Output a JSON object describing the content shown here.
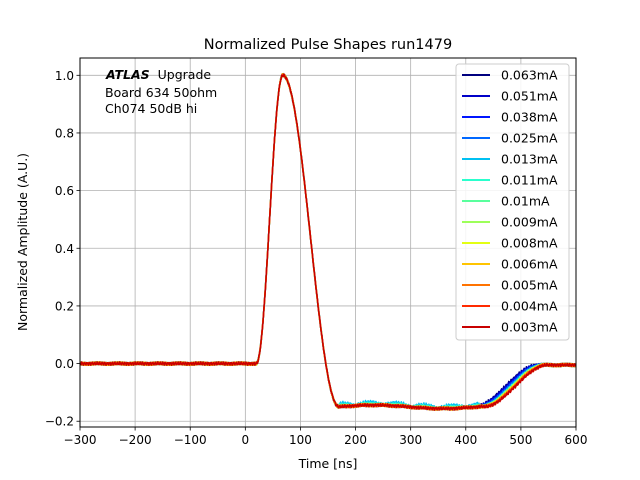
{
  "chart_data": {
    "type": "line",
    "title": "Normalized Pulse Shapes run1479",
    "xlabel": "Time [ns]",
    "ylabel": "Normalized Amplitude (A.U.)",
    "xlim": [
      -300,
      600
    ],
    "ylim": [
      -0.22,
      1.06
    ],
    "xticks": [
      -300,
      -200,
      -100,
      0,
      100,
      200,
      300,
      400,
      500,
      600
    ],
    "xtick_labels": [
      "−300",
      "−200",
      "−100",
      "0",
      "100",
      "200",
      "300",
      "400",
      "500",
      "600"
    ],
    "yticks": [
      -0.2,
      0.0,
      0.2,
      0.4,
      0.6,
      0.8,
      1.0
    ],
    "ytick_labels": [
      "−0.2",
      "0.0",
      "0.2",
      "0.4",
      "0.6",
      "0.8",
      "1.0"
    ],
    "grid": true,
    "legend_position": "top-right",
    "annotation": {
      "brand": "ATLAS",
      "brand_suffix": "Upgrade",
      "line2": "Board 634 50ohm",
      "line3": "Ch074 50dB hi"
    },
    "pulse_model": {
      "baseline": 0.0,
      "onset_ns": 20,
      "peak_ns": 68,
      "peak_value": 1.0,
      "fall_end_ns": 170,
      "undershoot_level": -0.15,
      "recovery_start_ns": 430,
      "recovery_end_ns": 545,
      "tail_value": -0.005
    },
    "series": [
      {
        "name": "0.063mA",
        "color": "#00007f",
        "recovery_shift_ns": -15,
        "ripple": 0.0
      },
      {
        "name": "0.051mA",
        "color": "#0000c8",
        "recovery_shift_ns": -13,
        "ripple": 0.0
      },
      {
        "name": "0.038mA",
        "color": "#0015ff",
        "recovery_shift_ns": -10,
        "ripple": 0.0
      },
      {
        "name": "0.025mA",
        "color": "#0068ff",
        "recovery_shift_ns": -8,
        "ripple": 0.004
      },
      {
        "name": "0.013mA",
        "color": "#00c0f2",
        "recovery_shift_ns": -5,
        "ripple": 0.012
      },
      {
        "name": "0.011mA",
        "color": "#2affcd",
        "recovery_shift_ns": -4,
        "ripple": 0.006
      },
      {
        "name": "0.01mA",
        "color": "#59ff9d",
        "recovery_shift_ns": -3,
        "ripple": 0.003
      },
      {
        "name": "0.009mA",
        "color": "#9dff59",
        "recovery_shift_ns": -2,
        "ripple": 0.002
      },
      {
        "name": "0.008mA",
        "color": "#e3ff13",
        "recovery_shift_ns": -1,
        "ripple": 0.0
      },
      {
        "name": "0.006mA",
        "color": "#ffc400",
        "recovery_shift_ns": 0,
        "ripple": 0.0
      },
      {
        "name": "0.005mA",
        "color": "#ff7300",
        "recovery_shift_ns": 1,
        "ripple": 0.0
      },
      {
        "name": "0.004mA",
        "color": "#ff2a00",
        "recovery_shift_ns": 2,
        "ripple": 0.0
      },
      {
        "name": "0.003mA",
        "color": "#c80000",
        "recovery_shift_ns": 3,
        "ripple": 0.0
      }
    ]
  }
}
